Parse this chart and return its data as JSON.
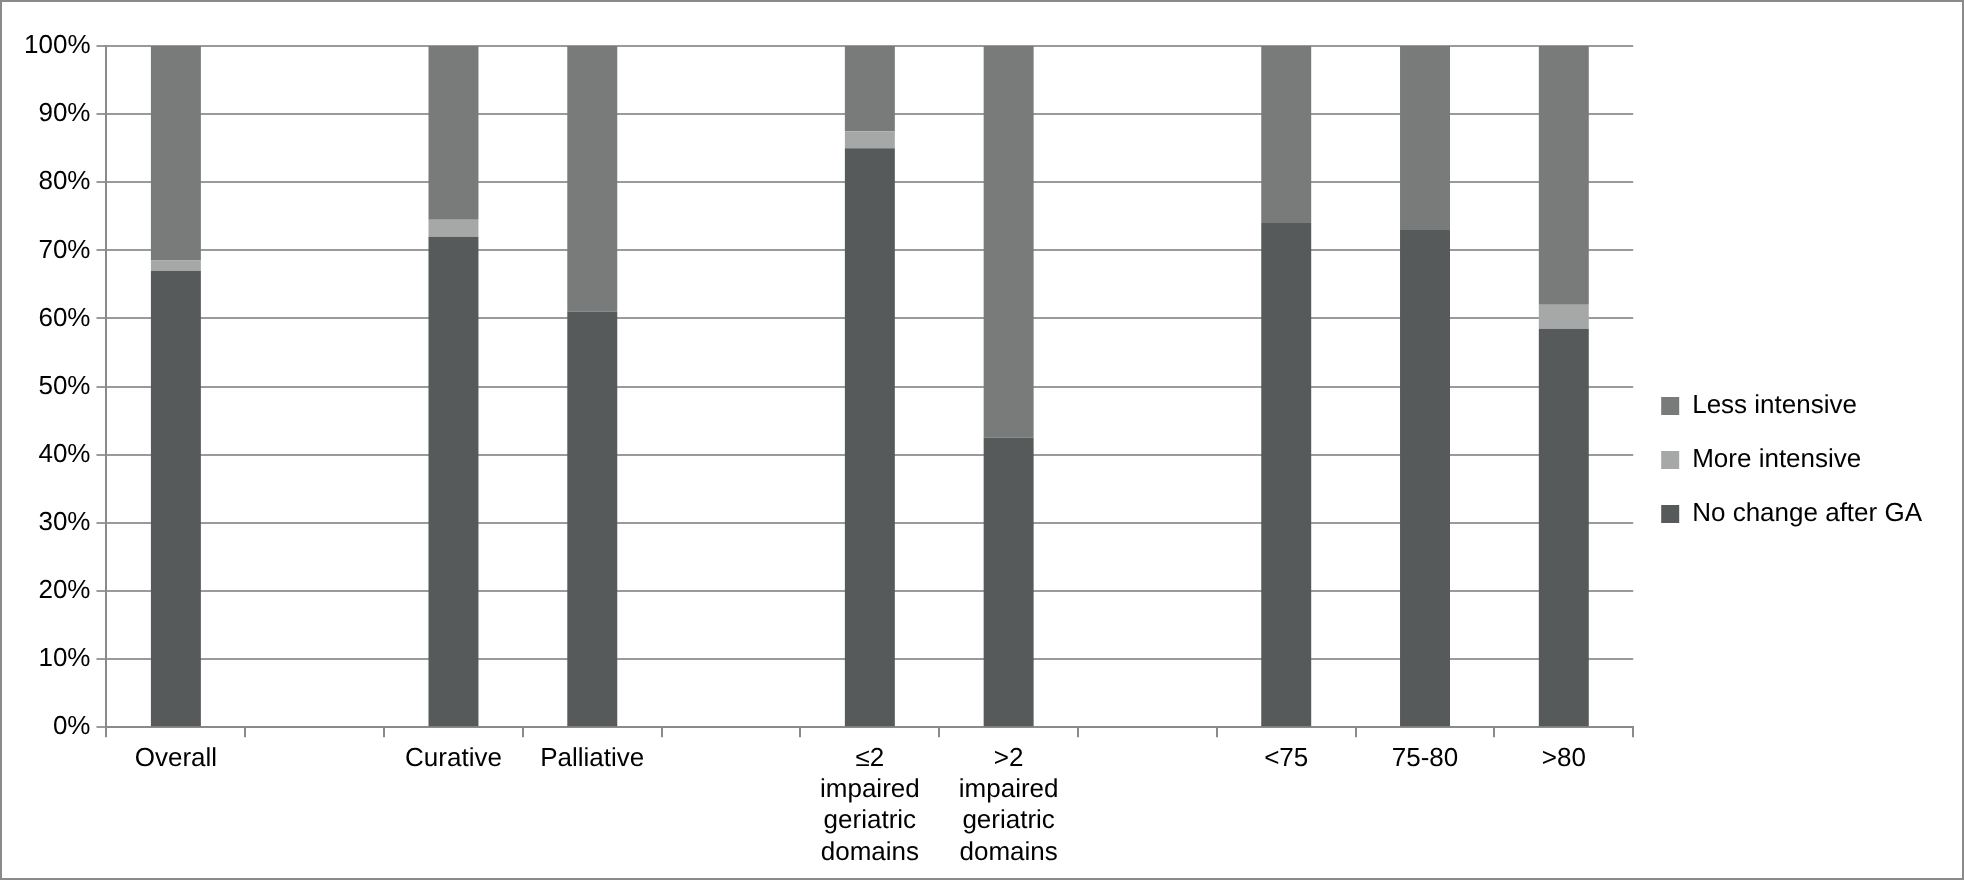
{
  "chart_data": {
    "type": "bar",
    "stacked": true,
    "categories": [
      "Overall",
      null,
      "Curative",
      "Palliative",
      null,
      "≤2 impaired geriatric domains",
      ">2 impaired geriatric domains",
      null,
      "<75",
      "75-80",
      ">80"
    ],
    "series": [
      {
        "name": "No change after GA",
        "color": "#575a5b",
        "values": [
          67,
          null,
          72,
          61,
          null,
          85,
          42.5,
          null,
          74,
          73,
          58.5
        ]
      },
      {
        "name": "More intensive",
        "color": "#a6a8a8",
        "values": [
          1.5,
          null,
          2.5,
          0,
          null,
          2.5,
          0,
          null,
          0,
          0,
          3.5
        ]
      },
      {
        "name": "Less intensive",
        "color": "#797b7b",
        "values": [
          31.5,
          null,
          25.5,
          39,
          null,
          12.5,
          57.5,
          null,
          26,
          27,
          38
        ]
      }
    ],
    "ylim": [
      0,
      100
    ],
    "yticks": [
      {
        "value": 0,
        "label": "0%"
      },
      {
        "value": 10,
        "label": "10%"
      },
      {
        "value": 20,
        "label": "20%"
      },
      {
        "value": 30,
        "label": "30%"
      },
      {
        "value": 40,
        "label": "40%"
      },
      {
        "value": 50,
        "label": "50%"
      },
      {
        "value": 60,
        "label": "60%"
      },
      {
        "value": 70,
        "label": "70%"
      },
      {
        "value": 80,
        "label": "80%"
      },
      {
        "value": 90,
        "label": "90%"
      },
      {
        "value": 100,
        "label": "100%"
      }
    ],
    "grid": "y",
    "legend": "right"
  }
}
